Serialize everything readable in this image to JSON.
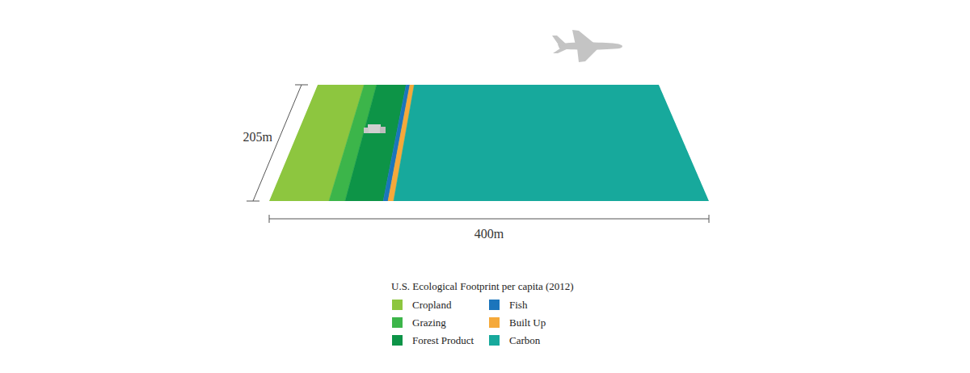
{
  "chart_data": {
    "type": "bar",
    "orientation": "horizontal",
    "stacked": true,
    "title": "U.S. Ecological Footprint per capita (2012)",
    "xlabel": "400m",
    "ylabel": "205m",
    "xlim": [
      0,
      400
    ],
    "ylim": [
      0,
      205
    ],
    "tick_labels": false,
    "legend": "bottom",
    "series": [
      {
        "name": "Cropland",
        "color": "#8dc63f",
        "values": [
          54.4
        ]
      },
      {
        "name": "Grazing",
        "color": "#3cb54a",
        "values": [
          14.7
        ]
      },
      {
        "name": "Forest Product",
        "color": "#0d9447",
        "values": [
          34.6
        ]
      },
      {
        "name": "Fish",
        "color": "#1b75bc",
        "values": [
          4.4
        ]
      },
      {
        "name": "Built Up",
        "color": "#f5a93a",
        "values": [
          5.1
        ]
      },
      {
        "name": "Carbon",
        "color": "#17a99c",
        "values": [
          286.8
        ]
      }
    ]
  }
}
